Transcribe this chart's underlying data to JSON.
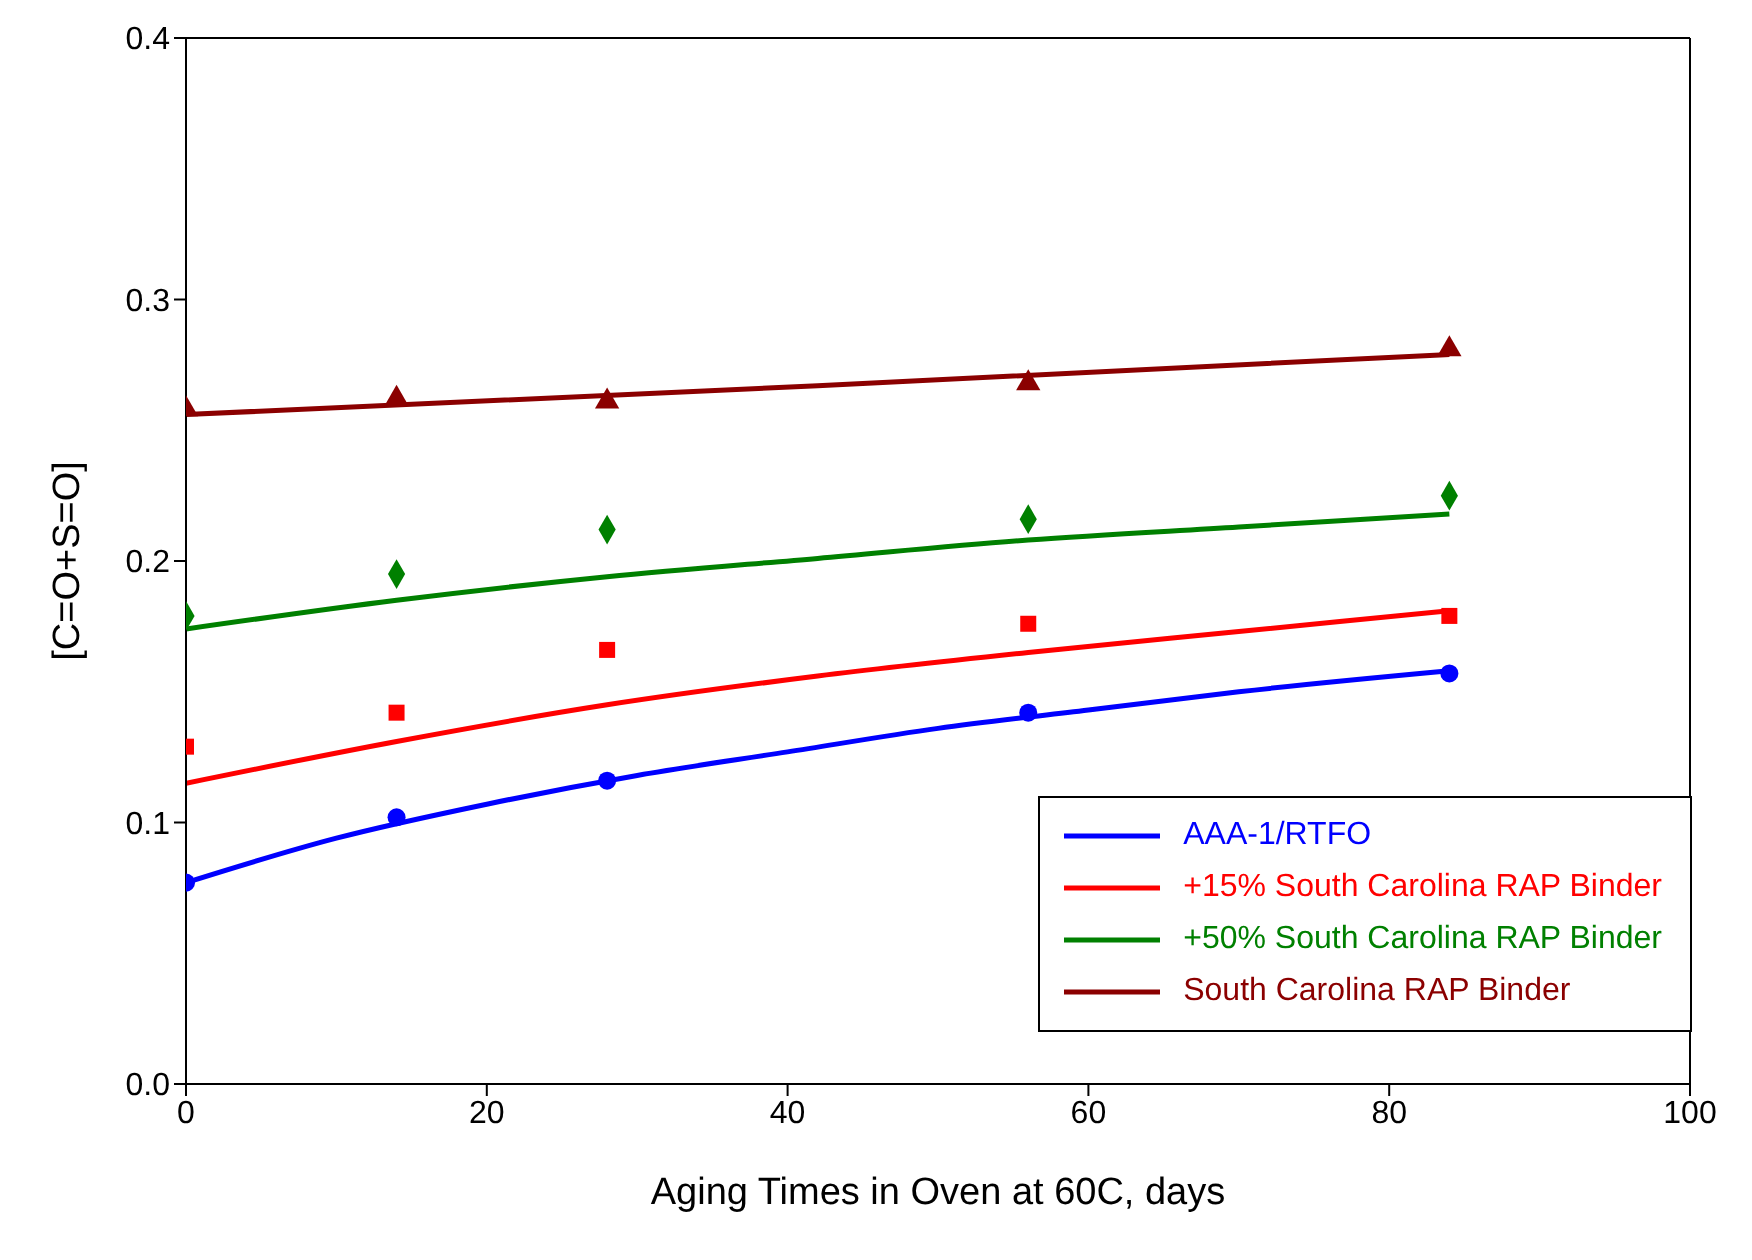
{
  "chart_data": {
    "type": "scatter",
    "xlabel": "Aging Times in Oven at 60C, days",
    "ylabel": "[C=O+S=O]",
    "xlim": [
      0,
      100
    ],
    "xticks": [
      0,
      20,
      40,
      60,
      80,
      100
    ],
    "ylim": [
      0,
      0.4
    ],
    "yticks": [
      {
        "value": 0,
        "label": "0.0"
      },
      {
        "value": 0.1,
        "label": "0.1"
      },
      {
        "value": 0.2,
        "label": "0.2"
      },
      {
        "value": 0.3,
        "label": "0.3"
      },
      {
        "value": 0.4,
        "label": "0.4"
      }
    ],
    "legend": "bottom right",
    "series": [
      {
        "marker": "circle",
        "color": "#0000ff",
        "x": [
          0,
          14,
          28,
          56,
          84
        ],
        "values": [
          0.077,
          0.102,
          0.116,
          0.142,
          0.157
        ]
      },
      {
        "marker": "square",
        "color": "#ff0000",
        "x": [
          0,
          14,
          28,
          56,
          84
        ],
        "values": [
          0.129,
          0.142,
          0.166,
          0.176,
          0.179
        ]
      },
      {
        "marker": "diamond",
        "color": "#008000",
        "x": [
          0,
          14,
          28,
          56,
          84
        ],
        "values": [
          0.179,
          0.195,
          0.212,
          0.216,
          0.225
        ]
      },
      {
        "marker": "triangle",
        "color": "#8b0000",
        "x": [
          0,
          14,
          28,
          56,
          84
        ],
        "values": [
          0.258,
          0.262,
          0.261,
          0.268,
          0.281
        ]
      },
      {
        "type": "line",
        "marker": "none",
        "name": "AAA-1/RTFO",
        "color": "#0000ff",
        "x": [
          0,
          10,
          20,
          30,
          40,
          50,
          60,
          70,
          84
        ],
        "values": [
          0.077,
          0.094,
          0.107,
          0.118,
          0.127,
          0.136,
          0.143,
          0.15,
          0.158
        ]
      },
      {
        "type": "line",
        "marker": "none",
        "name": "+15% South Carolina RAP Binder",
        "color": "#ff0000",
        "x": [
          0,
          14,
          28,
          42,
          56,
          70,
          84
        ],
        "values": [
          0.115,
          0.131,
          0.145,
          0.156,
          0.165,
          0.173,
          0.181
        ]
      },
      {
        "type": "line",
        "marker": "none",
        "name": "+50% South Carolina RAP Binder",
        "color": "#008000",
        "x": [
          0,
          14,
          28,
          42,
          56,
          70,
          84
        ],
        "values": [
          0.174,
          0.185,
          0.194,
          0.201,
          0.208,
          0.213,
          0.218
        ]
      },
      {
        "type": "line",
        "marker": "none",
        "name": "South Carolina RAP Binder",
        "color": "#8b0000",
        "x": [
          0,
          42,
          84
        ],
        "values": [
          0.256,
          0.267,
          0.279
        ]
      }
    ]
  }
}
